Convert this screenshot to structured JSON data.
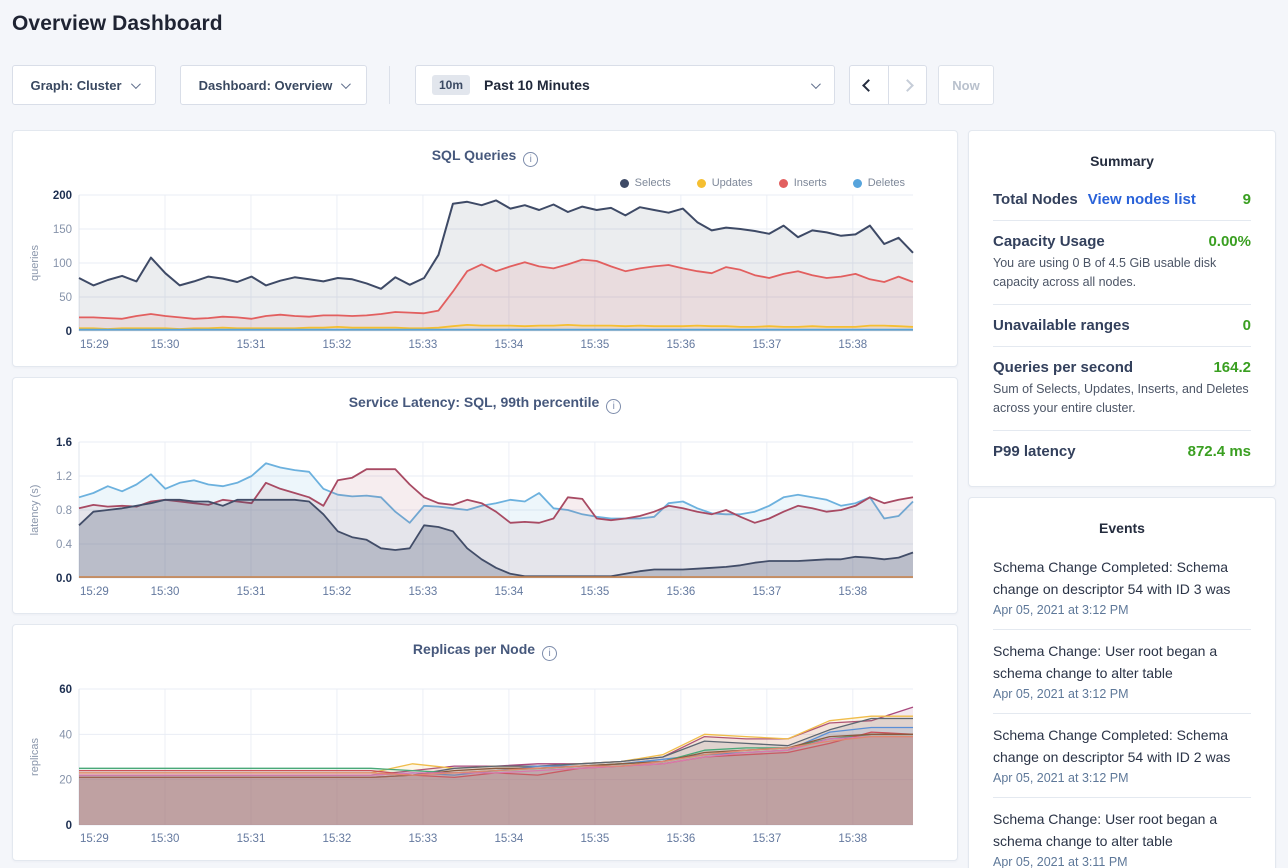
{
  "page": {
    "title": "Overview Dashboard"
  },
  "toolbar": {
    "graph_dropdown": "Graph: Cluster",
    "dashboard_dropdown": "Dashboard: Overview",
    "time_badge": "10m",
    "time_label": "Past 10 Minutes",
    "now_button": "Now"
  },
  "colors": {
    "accent_green": "#3a9f21",
    "link_blue": "#2962d9"
  },
  "summary": {
    "title": "Summary",
    "rows": [
      {
        "label": "Total Nodes",
        "link": "View nodes list",
        "value": "9"
      },
      {
        "label": "Capacity Usage",
        "value": "0.00%",
        "caption": "You are using 0 B of 4.5 GiB usable disk capacity across all nodes."
      },
      {
        "label": "Unavailable ranges",
        "value": "0"
      },
      {
        "label": "Queries per second",
        "value": "164.2",
        "caption": "Sum of Selects, Updates, Inserts, and Deletes across your entire cluster."
      },
      {
        "label": "P99 latency",
        "value": "872.4 ms"
      }
    ]
  },
  "events": {
    "title": "Events",
    "items": [
      {
        "text": "Schema Change Completed: Schema change on descriptor 54 with ID 3 was",
        "time": "Apr 05, 2021 at 3:12 PM"
      },
      {
        "text": "Schema Change: User root began a schema change to alter table",
        "time": "Apr 05, 2021 at 3:12 PM"
      },
      {
        "text": "Schema Change Completed: Schema change on descriptor 54 with ID 2 was",
        "time": "Apr 05, 2021 at 3:12 PM"
      },
      {
        "text": "Schema Change: User root began a schema change to alter table",
        "time": "Apr 05, 2021 at 3:11 PM"
      }
    ]
  },
  "chart_data": [
    {
      "id": "sql-queries",
      "type": "area",
      "title": "SQL Queries",
      "ylabel": "queries",
      "xlim": [
        0,
        9.7
      ],
      "ylim": [
        0,
        200
      ],
      "yticks": [
        "0",
        "50",
        "100",
        "150",
        "200"
      ],
      "xticks": [
        "15:29",
        "15:30",
        "15:31",
        "15:32",
        "15:33",
        "15:34",
        "15:35",
        "15:36",
        "15:37",
        "15:38"
      ],
      "grid": true,
      "legend_position": "top-right",
      "legend": [
        {
          "label": "Selects",
          "color": "#3e4a66"
        },
        {
          "label": "Updates",
          "color": "#f5bf31"
        },
        {
          "label": "Inserts",
          "color": "#e25f5f"
        },
        {
          "label": "Deletes",
          "color": "#57a4dc"
        }
      ],
      "series": [
        {
          "name": "selects",
          "color": "#3e4a66",
          "fill": 0.1,
          "width": 2,
          "values": [
            78,
            67,
            75,
            81,
            73,
            108,
            85,
            67,
            73,
            80,
            77,
            72,
            80,
            67,
            74,
            79,
            76,
            73,
            78,
            76,
            70,
            62,
            79,
            68,
            78,
            112,
            187,
            190,
            185,
            192,
            180,
            185,
            178,
            186,
            175,
            183,
            178,
            181,
            170,
            182,
            178,
            174,
            180,
            160,
            148,
            152,
            150,
            147,
            143,
            155,
            138,
            148,
            145,
            140,
            142,
            155,
            128,
            137,
            115
          ]
        },
        {
          "name": "inserts",
          "color": "#e25f5f",
          "fill": 0.12,
          "width": 1.8,
          "values": [
            20,
            20,
            19,
            18,
            22,
            25,
            22,
            20,
            18,
            19,
            21,
            20,
            18,
            22,
            24,
            22,
            21,
            23,
            23,
            22,
            23,
            25,
            28,
            27,
            26,
            30,
            58,
            88,
            98,
            88,
            95,
            101,
            95,
            92,
            98,
            105,
            103,
            95,
            88,
            92,
            95,
            97,
            92,
            88,
            85,
            94,
            90,
            82,
            78,
            84,
            88,
            82,
            78,
            80,
            84,
            76,
            72,
            80,
            72
          ]
        },
        {
          "name": "updates",
          "color": "#f5bf31",
          "fill": 0.15,
          "width": 1.8,
          "values": [
            4,
            4,
            3,
            4,
            4,
            4,
            4,
            3,
            4,
            4,
            5,
            4,
            4,
            4,
            4,
            4,
            5,
            5,
            6,
            5,
            5,
            5,
            5,
            4,
            4,
            5,
            7,
            9,
            8,
            8,
            8,
            7,
            8,
            8,
            9,
            8,
            8,
            8,
            7,
            8,
            7,
            7,
            7,
            8,
            7,
            7,
            6,
            6,
            7,
            6,
            6,
            7,
            6,
            6,
            6,
            8,
            8,
            7,
            6
          ]
        },
        {
          "name": "deletes",
          "color": "#57a4dc",
          "fill": 0.2,
          "width": 1.8,
          "values": [
            2,
            2
          ]
        }
      ]
    },
    {
      "id": "service-latency",
      "type": "area",
      "title": "Service Latency: SQL, 99th percentile",
      "ylabel": "latency (s)",
      "xlim": [
        0,
        9.7
      ],
      "ylim": [
        0,
        1.6
      ],
      "yticks": [
        "0.0",
        "0.4",
        "0.8",
        "1.2",
        "1.6"
      ],
      "xticks": [
        "15:29",
        "15:30",
        "15:31",
        "15:32",
        "15:33",
        "15:34",
        "15:35",
        "15:36",
        "15:37",
        "15:38"
      ],
      "grid": true,
      "series": [
        {
          "name": "p99-blue",
          "color": "#6cb1de",
          "fill": 0.12,
          "width": 1.8,
          "values": [
            0.95,
            1.0,
            1.08,
            1.02,
            1.1,
            1.22,
            1.05,
            1.12,
            1.15,
            1.1,
            1.08,
            1.12,
            1.2,
            1.35,
            1.3,
            1.27,
            1.25,
            1.05,
            0.98,
            0.96,
            0.97,
            0.95,
            0.78,
            0.65,
            0.85,
            0.84,
            0.82,
            0.8,
            0.85,
            0.88,
            0.92,
            0.9,
            1.0,
            0.82,
            0.8,
            0.75,
            0.72,
            0.7,
            0.7,
            0.7,
            0.72,
            0.88,
            0.9,
            0.82,
            0.76,
            0.75,
            0.75,
            0.78,
            0.85,
            0.95,
            0.98,
            0.95,
            0.92,
            0.85,
            0.88,
            0.95,
            0.7,
            0.73,
            0.9
          ]
        },
        {
          "name": "p99-maroon",
          "color": "#a84a63",
          "fill": 0.1,
          "width": 1.8,
          "values": [
            0.82,
            0.86,
            0.84,
            0.85,
            0.84,
            0.9,
            0.92,
            0.9,
            0.88,
            0.86,
            0.92,
            0.9,
            0.88,
            1.12,
            1.05,
            1.0,
            0.95,
            0.85,
            1.15,
            1.18,
            1.28,
            1.28,
            1.28,
            1.1,
            0.95,
            0.88,
            0.86,
            0.92,
            0.88,
            0.78,
            0.65,
            0.66,
            0.65,
            0.7,
            0.95,
            0.93,
            0.7,
            0.68,
            0.7,
            0.73,
            0.78,
            0.85,
            0.82,
            0.78,
            0.75,
            0.8,
            0.72,
            0.65,
            0.7,
            0.78,
            0.85,
            0.82,
            0.78,
            0.8,
            0.85,
            0.95,
            0.88,
            0.92,
            0.95
          ]
        },
        {
          "name": "p99-navy",
          "color": "#424d68",
          "fill": 0.26,
          "width": 1.8,
          "values": [
            0.62,
            0.78,
            0.8,
            0.82,
            0.85,
            0.88,
            0.92,
            0.92,
            0.9,
            0.9,
            0.85,
            0.92,
            0.92,
            0.92,
            0.92,
            0.92,
            0.9,
            0.75,
            0.55,
            0.48,
            0.45,
            0.35,
            0.33,
            0.35,
            0.62,
            0.6,
            0.55,
            0.35,
            0.22,
            0.12,
            0.05,
            0.02,
            0.02,
            0.02,
            0.02,
            0.02,
            0.02,
            0.02,
            0.05,
            0.08,
            0.1,
            0.1,
            0.1,
            0.11,
            0.12,
            0.13,
            0.15,
            0.18,
            0.2,
            0.2,
            0.2,
            0.21,
            0.22,
            0.22,
            0.25,
            0.24,
            0.22,
            0.24,
            0.3
          ]
        },
        {
          "name": "p99-orange",
          "color": "#c98148",
          "width": 1.6,
          "values": [
            0.012,
            0.012
          ]
        }
      ]
    },
    {
      "id": "replicas-per-node",
      "type": "area",
      "title": "Replicas per Node",
      "ylabel": "replicas",
      "xlim": [
        0,
        9.7
      ],
      "ylim": [
        0,
        60
      ],
      "yticks": [
        "0",
        "20",
        "40",
        "60"
      ],
      "xticks": [
        "15:29",
        "15:30",
        "15:31",
        "15:32",
        "15:33",
        "15:34",
        "15:35",
        "15:36",
        "15:37",
        "15:38"
      ],
      "grid": true,
      "series": [
        {
          "name": "node-1",
          "color": "#a8487d",
          "fill": 0.12,
          "width": 1.3,
          "values": [
            22,
            22,
            22,
            22,
            22,
            22,
            22,
            22,
            24,
            26,
            26,
            27,
            27,
            28,
            30,
            39,
            38,
            38,
            45,
            46,
            52
          ]
        },
        {
          "name": "node-2",
          "color": "#f0bd4b",
          "fill": 0.12,
          "width": 1.3,
          "values": [
            23,
            23,
            23,
            23,
            23,
            23,
            23,
            23,
            27,
            25,
            26,
            26,
            27,
            28,
            31,
            40,
            39,
            38,
            46,
            48,
            48
          ]
        },
        {
          "name": "node-3",
          "color": "#5c6672",
          "fill": 0.12,
          "width": 1.3,
          "values": [
            21,
            21,
            21,
            21,
            21,
            21,
            21,
            21,
            22,
            25,
            26,
            26,
            27,
            28,
            30,
            37,
            36,
            35,
            42,
            47,
            47
          ]
        },
        {
          "name": "node-4",
          "color": "#5b8fd6",
          "fill": 0.12,
          "width": 1.3,
          "values": [
            22,
            22,
            22,
            22,
            22,
            22,
            22,
            22,
            23,
            22,
            24,
            26,
            26,
            27,
            29,
            31,
            32,
            33,
            41,
            43,
            43
          ]
        },
        {
          "name": "node-5",
          "color": "#49a878",
          "fill": 0.12,
          "width": 1.3,
          "values": [
            25,
            25,
            25,
            25,
            25,
            25,
            25,
            25,
            24,
            23,
            24,
            25,
            26,
            27,
            28,
            33,
            34,
            34,
            38,
            40,
            40
          ]
        },
        {
          "name": "node-6",
          "color": "#cc5059",
          "fill": 0.12,
          "width": 1.3,
          "values": [
            24,
            24,
            24,
            24,
            24,
            24,
            24,
            24,
            22,
            21,
            23,
            22,
            25,
            26,
            27,
            30,
            31,
            32,
            36,
            41,
            40
          ]
        },
        {
          "name": "node-7",
          "color": "#8c5b3f",
          "fill": 0.12,
          "width": 1.3,
          "values": [
            21,
            21,
            21,
            21,
            21,
            21,
            21,
            21,
            22,
            24,
            25,
            25,
            26,
            27,
            28,
            32,
            33,
            34,
            39,
            40,
            40
          ]
        },
        {
          "name": "node-8",
          "color": "#d977b5",
          "fill": 0.12,
          "width": 1.3,
          "values": [
            22,
            22,
            22,
            22,
            22,
            22,
            22,
            22,
            23,
            23,
            23,
            24,
            25,
            26,
            27,
            30,
            32,
            33,
            38,
            39,
            39
          ]
        },
        {
          "name": "node-9",
          "color": "#e08870",
          "fill": 0.12,
          "width": 1.3,
          "values": [
            23,
            23,
            23,
            23,
            23,
            23,
            23,
            23,
            22,
            23,
            24,
            25,
            26,
            26,
            28,
            31,
            33,
            34,
            37,
            39,
            39
          ]
        }
      ]
    }
  ]
}
